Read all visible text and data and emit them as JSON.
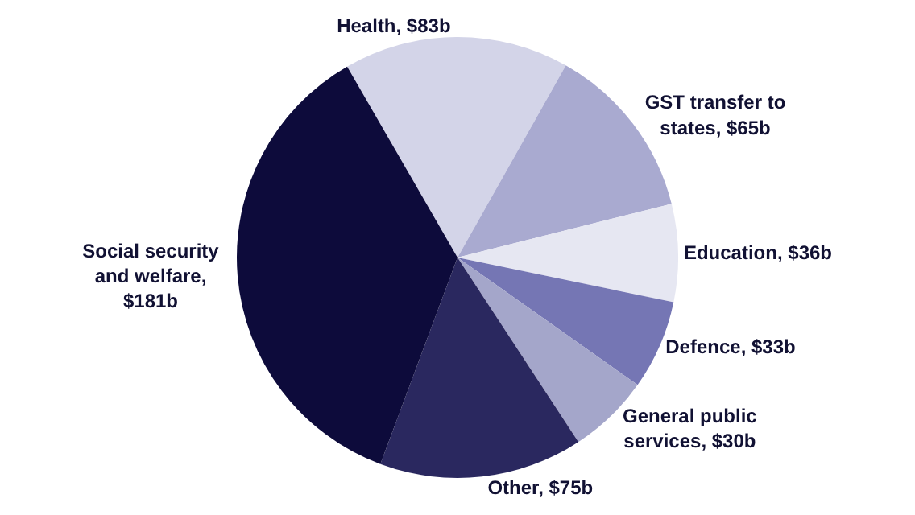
{
  "chart_data": {
    "type": "pie",
    "categories": [
      "Health, $83b",
      "GST transfer to states, $65b",
      "Education, $36b",
      "Defence, $33b",
      "General public services, $30b",
      "Other, $75b",
      "Social security and welfare, $181b"
    ],
    "values": [
      83,
      65,
      36,
      33,
      30,
      75,
      181
    ],
    "colors": [
      "#d3d4e8",
      "#a9aad0",
      "#e6e7f2",
      "#7576b4",
      "#a4a6ca",
      "#2a285f",
      "#0d0b3b"
    ],
    "legend": false
  }
}
